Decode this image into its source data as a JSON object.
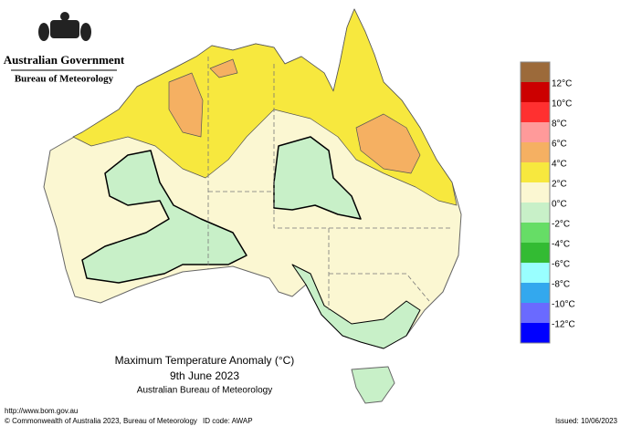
{
  "header": {
    "agency": "Australian Government",
    "bureau": "Bureau of Meteorology"
  },
  "legend": {
    "items": [
      {
        "color": "#9c6a3a",
        "label": null
      },
      {
        "color": "#cc0000",
        "label": "12°C"
      },
      {
        "color": "#ff3030",
        "label": "10°C"
      },
      {
        "color": "#ff9a9a",
        "label": "8°C"
      },
      {
        "color": "#f5b062",
        "label": "6°C"
      },
      {
        "color": "#f7e83e",
        "label": "4°C"
      },
      {
        "color": "#fbf7d2",
        "label": "2°C"
      },
      {
        "color": "#c8f0c8",
        "label": "0°C"
      },
      {
        "color": "#66dd66",
        "label": "-2°C"
      },
      {
        "color": "#33bb33",
        "label": "-4°C"
      },
      {
        "color": "#99ffff",
        "label": "-6°C"
      },
      {
        "color": "#33a8ee",
        "label": "-8°C"
      },
      {
        "color": "#6a6aff",
        "label": "-10°C"
      },
      {
        "color": "#0000ff",
        "label": "-12°C"
      }
    ]
  },
  "map": {
    "title": "Maximum Temperature Anomaly (°C)",
    "date": "9th June 2023",
    "source": "Australian Bureau of Meteorology"
  },
  "footer": {
    "url": "http://www.bom.gov.au",
    "copyright": "© Commonwealth of Australia 2023, Bureau of Meteorology",
    "id_code": "ID code: AWAP",
    "issued": "Issued: 10/06/2023"
  }
}
